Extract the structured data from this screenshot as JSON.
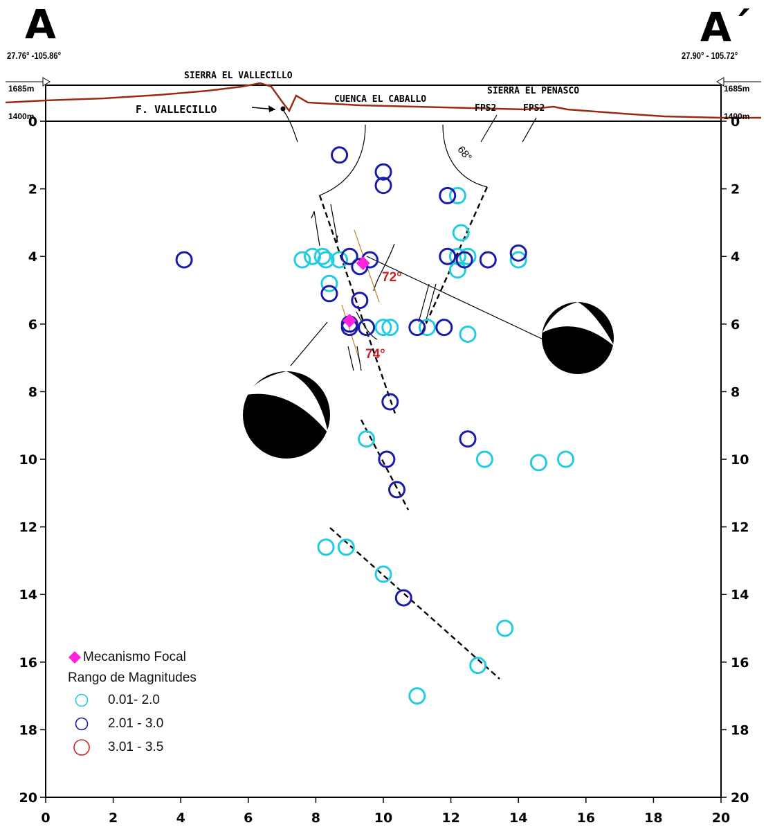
{
  "header": {
    "left_label": "A",
    "right_label": "A´",
    "left_coord": "27.76° -105.86°",
    "right_coord": "27.90° - 105.72°"
  },
  "profile": {
    "elev_top": "1685m",
    "elev_bottom": "1400m",
    "labels": [
      "SIERRA EL VALLECILLO",
      "F. VALLECILLO",
      "CUENCA EL CABALLO",
      "SIERRA EL PENASCO",
      "FPS2",
      "FPS2"
    ]
  },
  "chart_data": {
    "type": "scatter",
    "title": "",
    "xlabel": "",
    "ylabel": "",
    "xlim": [
      0,
      20
    ],
    "ylim": [
      20,
      0
    ],
    "x_ticks": [
      "0",
      "2",
      "4",
      "6",
      "8",
      "10",
      "12",
      "14",
      "16",
      "18",
      "20"
    ],
    "y_ticks": [
      "0",
      "2",
      "4",
      "6",
      "8",
      "10",
      "12",
      "14",
      "16",
      "18",
      "20"
    ],
    "legend_position": "bottom-left",
    "fault_dips": [
      "72°",
      "74°",
      "68°"
    ],
    "series": [
      {
        "name": "0.01- 2.0",
        "color": "#22cce0",
        "points": [
          [
            8.2,
            4.0
          ],
          [
            7.6,
            4.1
          ],
          [
            7.9,
            4.0
          ],
          [
            8.3,
            4.1
          ],
          [
            8.4,
            4.8
          ],
          [
            8.7,
            4.1
          ],
          [
            10.0,
            6.1
          ],
          [
            10.2,
            6.1
          ],
          [
            11.3,
            6.1
          ],
          [
            12.2,
            2.2
          ],
          [
            12.3,
            3.3
          ],
          [
            12.2,
            4.0
          ],
          [
            12.5,
            4.0
          ],
          [
            12.2,
            4.4
          ],
          [
            12.5,
            6.3
          ],
          [
            14.0,
            4.1
          ],
          [
            9.5,
            9.4
          ],
          [
            13.0,
            10.0
          ],
          [
            14.6,
            10.1
          ],
          [
            15.4,
            10.0
          ],
          [
            8.3,
            12.6
          ],
          [
            8.9,
            12.6
          ],
          [
            10.0,
            13.4
          ],
          [
            13.6,
            15.0
          ],
          [
            12.8,
            16.1
          ],
          [
            11.0,
            17.0
          ]
        ]
      },
      {
        "name": "2.01 - 3.0",
        "color": "#1a1aa8",
        "points": [
          [
            4.1,
            4.1
          ],
          [
            8.7,
            1.0
          ],
          [
            10.0,
            1.5
          ],
          [
            10.0,
            1.9
          ],
          [
            8.4,
            5.1
          ],
          [
            9.0,
            4.0
          ],
          [
            9.3,
            4.3
          ],
          [
            9.6,
            4.1
          ],
          [
            9.3,
            5.3
          ],
          [
            9.0,
            6.0
          ],
          [
            9.0,
            6.1
          ],
          [
            9.5,
            6.1
          ],
          [
            11.0,
            6.1
          ],
          [
            11.8,
            6.1
          ],
          [
            11.9,
            2.2
          ],
          [
            11.9,
            4.0
          ],
          [
            12.4,
            4.1
          ],
          [
            13.1,
            4.1
          ],
          [
            14.0,
            3.9
          ],
          [
            10.2,
            8.3
          ],
          [
            10.1,
            10.0
          ],
          [
            10.4,
            10.9
          ],
          [
            12.5,
            9.4
          ],
          [
            10.6,
            14.1
          ]
        ]
      },
      {
        "name": "3.01 - 3.5",
        "color": "#cc2222",
        "points": []
      }
    ],
    "focal_mechanisms": [
      [
        9.4,
        4.2
      ],
      [
        9.0,
        5.9
      ]
    ]
  },
  "legend": {
    "focal_label": "Mecanismo Focal",
    "range_title": "Rango de Magnitudes",
    "item1": "0.01- 2.0",
    "item2": "2.01 - 3.0",
    "item3": "3.01 - 3.5"
  }
}
